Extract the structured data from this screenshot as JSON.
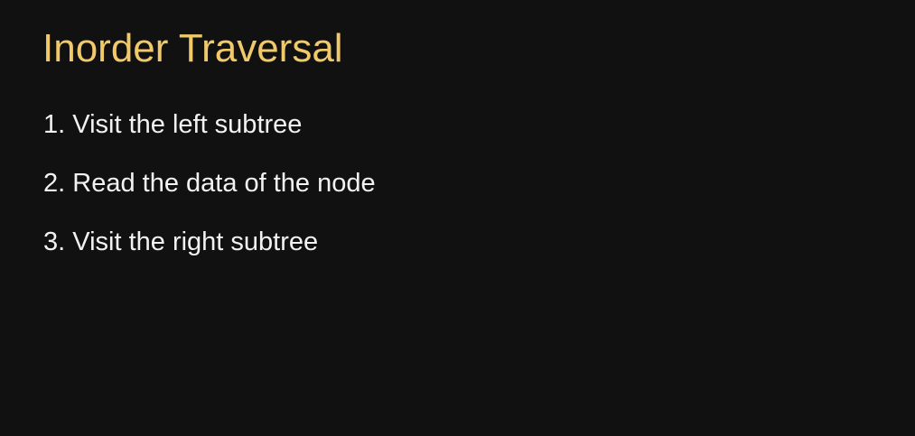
{
  "slide": {
    "title": "Inorder Traversal",
    "steps": [
      {
        "number": "1.",
        "text": "Visit the left subtree"
      },
      {
        "number": "2.",
        "text": "Read the data of the node"
      },
      {
        "number": "3.",
        "text": "Visit the right subtree"
      }
    ]
  },
  "colors": {
    "background": "#111111",
    "title": "#f0c96a",
    "body_text": "#f2f2f2"
  }
}
